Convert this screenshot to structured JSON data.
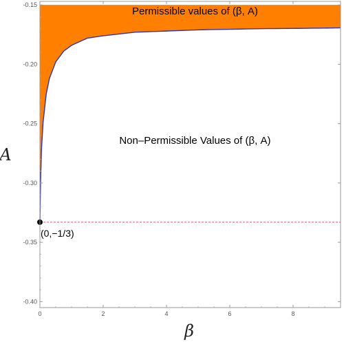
{
  "chart_data": {
    "type": "area",
    "title": "",
    "xlabel": "β",
    "ylabel": "A",
    "xlim": [
      0,
      9.5
    ],
    "ylim": [
      -0.405,
      -0.147
    ],
    "x_ticks": [
      "0",
      "2",
      "4",
      "6",
      "8"
    ],
    "x_tick_values": [
      0,
      2,
      4,
      6,
      8
    ],
    "y_ticks": [
      "-0.15",
      "-0.20",
      "-0.25",
      "-0.30",
      "-0.35",
      "-0.40"
    ],
    "y_tick_values": [
      -0.15,
      -0.2,
      -0.25,
      -0.3,
      -0.35,
      -0.4
    ],
    "boundary_curve": {
      "color": "#3333aa",
      "x": [
        0,
        0.02,
        0.05,
        0.1,
        0.2,
        0.3,
        0.5,
        0.75,
        1,
        1.5,
        2,
        3,
        4,
        5,
        6,
        7,
        8,
        9,
        9.5
      ],
      "y": [
        -0.333,
        -0.3,
        -0.272,
        -0.249,
        -0.225,
        -0.212,
        -0.198,
        -0.189,
        -0.184,
        -0.178,
        -0.176,
        -0.173,
        -0.172,
        -0.171,
        -0.1705,
        -0.17,
        -0.1698,
        -0.1695,
        -0.1693
      ]
    },
    "fill_region": {
      "color": "#ff8000",
      "upper_bound": -0.15,
      "label": "Permissible values of (β, A)",
      "label_at": [
        4.9,
        -0.158
      ]
    },
    "lower_region_label": {
      "text": "Non–Permissible Values of (β, A)",
      "at": [
        4.9,
        -0.267
      ]
    },
    "reference_line": {
      "y": -0.333,
      "style": "dashed",
      "color": "#e0507a"
    },
    "point": {
      "x": 0,
      "y": -0.333,
      "label": "(0,−1/3)",
      "color": "#000000"
    },
    "grid": false,
    "legend": "none"
  }
}
